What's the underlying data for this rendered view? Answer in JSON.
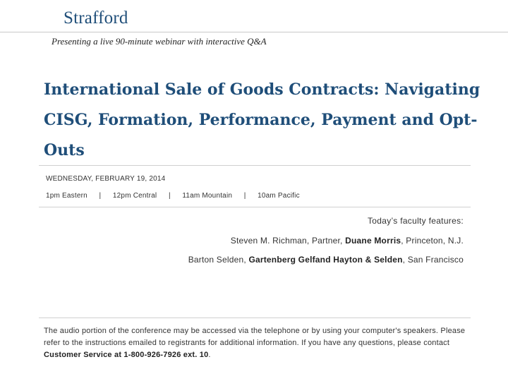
{
  "header": {
    "logo": "Strafford",
    "tagline": "Presenting a live 90-minute webinar with interactive Q&A"
  },
  "title": "International Sale of Goods Contracts: Navigating CISG, Formation, Performance, Payment and Opt-Outs",
  "schedule": {
    "date": "WEDNESDAY, FEBRUARY 19, 2014",
    "times": [
      "1pm Eastern",
      "12pm Central",
      "11am Mountain",
      "10am Pacific"
    ],
    "separator": "|"
  },
  "faculty": {
    "label": "Today’s faculty features:",
    "speakers": [
      {
        "before": "Steven M. Richman, Partner, ",
        "firm": "Duane Morris",
        "after": ", Princeton, N.J."
      },
      {
        "before": "Barton Selden, ",
        "firm": "Gartenberg Gelfand Hayton & Selden",
        "after": ", San Francisco"
      }
    ]
  },
  "footer": {
    "text": "The audio portion of the conference may be accessed via the telephone or by using your computer's speakers. Please refer to the instructions emailed to registrants for additional information.  If you have any questions, please contact ",
    "contact": "Customer Service at 1-800-926-7926 ext. 10",
    "end": "."
  }
}
